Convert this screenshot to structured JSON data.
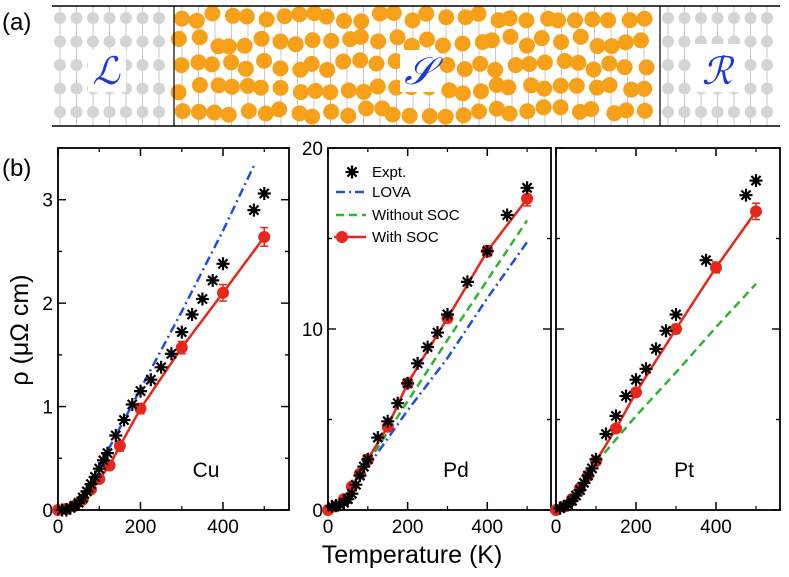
{
  "panel_labels": {
    "a": "(a)",
    "b": "(b)"
  },
  "schematic": {
    "left_label": "ℒ",
    "center_label": "𝒮",
    "right_label": "ℛ",
    "lead_dot_color": "#d4d4d4",
    "scatter_dot_color": "#f7a11a",
    "letter_color": "#1a35e6"
  },
  "axes": {
    "ylabel": "ρ (μΩ cm)",
    "xlabel": "Temperature (K)"
  },
  "colors": {
    "expt": "#000000",
    "lova": "#1f4fe0",
    "without_soc": "#2db52d",
    "with_soc": "#e8261c"
  },
  "legend": {
    "expt": "Expt.",
    "lova": "LOVA",
    "without_soc": "Without SOC",
    "with_soc": "With SOC"
  },
  "chart_data": [
    {
      "type": "line",
      "panel": "Cu",
      "metal_label": "Cu",
      "xlabel": "Temperature (K)",
      "ylabel": "ρ (μΩ cm)",
      "xlim": [
        0,
        560
      ],
      "ylim": [
        0,
        3.5
      ],
      "xticks": [
        0,
        200,
        400
      ],
      "xtick_labels": [
        "0",
        "200",
        "400"
      ],
      "yticks": [
        0,
        1,
        2,
        3
      ],
      "ytick_labels": [
        "0",
        "1",
        "2",
        "3"
      ],
      "series": [
        {
          "name": "Expt.",
          "style": "star",
          "x": [
            10,
            20,
            30,
            40,
            50,
            60,
            70,
            80,
            90,
            100,
            110,
            120,
            140,
            160,
            180,
            200,
            225,
            250,
            275,
            300,
            325,
            350,
            375,
            400,
            475,
            500
          ],
          "y": [
            0,
            0,
            0.02,
            0.04,
            0.07,
            0.12,
            0.18,
            0.25,
            0.32,
            0.4,
            0.48,
            0.55,
            0.72,
            0.87,
            1.02,
            1.15,
            1.26,
            1.38,
            1.51,
            1.72,
            1.89,
            2.04,
            2.22,
            2.38,
            2.9,
            3.06
          ]
        },
        {
          "name": "LOVA",
          "style": "dashdot",
          "x": [
            100,
            200,
            300,
            400,
            475
          ],
          "y": [
            0.42,
            1.17,
            1.92,
            2.7,
            3.33
          ]
        },
        {
          "name": "With SOC",
          "style": "line-circle",
          "x": [
            0,
            20,
            40,
            60,
            80,
            100,
            125,
            150,
            200,
            300,
            400,
            500
          ],
          "y": [
            0,
            0.01,
            0.04,
            0.1,
            0.2,
            0.3,
            0.43,
            0.62,
            0.98,
            1.57,
            2.1,
            2.64
          ],
          "err": [
            0,
            0,
            0,
            0.01,
            0.02,
            0.03,
            0.04,
            0.05,
            0.05,
            0.06,
            0.08,
            0.09
          ]
        }
      ]
    },
    {
      "type": "line",
      "panel": "Pd",
      "metal_label": "Pd",
      "xlabel": "Temperature (K)",
      "xlim": [
        0,
        560
      ],
      "ylim": [
        0,
        20
      ],
      "xticks": [
        0,
        200,
        400
      ],
      "xtick_labels": [
        "0",
        "200",
        "400"
      ],
      "yticks": [
        0,
        10,
        20
      ],
      "ytick_labels": [
        "0",
        "10",
        "20"
      ],
      "series": [
        {
          "name": "Expt.",
          "style": "star",
          "x": [
            10,
            20,
            30,
            40,
            50,
            60,
            70,
            80,
            90,
            100,
            125,
            150,
            175,
            200,
            225,
            250,
            275,
            300,
            350,
            400,
            450,
            500
          ],
          "y": [
            0.2,
            0.25,
            0.3,
            0.4,
            0.6,
            0.9,
            1.4,
            1.9,
            2.4,
            2.8,
            4.0,
            4.9,
            5.9,
            7.0,
            8.1,
            9.0,
            9.8,
            10.8,
            12.6,
            14.3,
            16.3,
            17.8
          ]
        },
        {
          "name": "LOVA",
          "style": "dashdot",
          "x": [
            100,
            200,
            300,
            400,
            500
          ],
          "y": [
            2.4,
            5.5,
            8.4,
            11.7,
            14.8
          ]
        },
        {
          "name": "Without SOC",
          "style": "dashed",
          "x": [
            100,
            200,
            300,
            400,
            500
          ],
          "y": [
            2.6,
            6.0,
            9.4,
            12.7,
            16.0
          ]
        },
        {
          "name": "With SOC",
          "style": "line-circle",
          "x": [
            0,
            20,
            40,
            60,
            80,
            100,
            150,
            200,
            300,
            400,
            500
          ],
          "y": [
            0,
            0.2,
            0.6,
            1.3,
            2.0,
            2.8,
            4.6,
            7.0,
            10.6,
            14.3,
            17.2
          ],
          "err": [
            0,
            0,
            0,
            0.05,
            0.1,
            0.1,
            0.15,
            0.2,
            0.25,
            0.3,
            0.4
          ]
        }
      ]
    },
    {
      "type": "line",
      "panel": "Pt",
      "metal_label": "Pt",
      "xlabel": "Temperature (K)",
      "xlim": [
        0,
        560
      ],
      "ylim": [
        0,
        20
      ],
      "xticks": [
        0,
        200,
        400
      ],
      "xtick_labels": [
        "0",
        "200",
        "400"
      ],
      "yticks": [
        0,
        10,
        20
      ],
      "ytick_labels": [],
      "series": [
        {
          "name": "Expt.",
          "style": "star",
          "x": [
            10,
            20,
            30,
            40,
            50,
            60,
            70,
            80,
            90,
            100,
            125,
            150,
            175,
            200,
            225,
            250,
            275,
            300,
            375,
            475,
            500
          ],
          "y": [
            0.1,
            0.2,
            0.3,
            0.5,
            0.8,
            1.1,
            1.5,
            1.9,
            2.3,
            2.8,
            4.2,
            5.2,
            6.3,
            7.2,
            7.8,
            8.9,
            9.9,
            10.8,
            13.8,
            17.4,
            18.2
          ]
        },
        {
          "name": "Without SOC",
          "style": "dashed",
          "x": [
            100,
            200,
            300,
            400,
            500
          ],
          "y": [
            2.6,
            5.2,
            7.6,
            10.1,
            12.5
          ]
        },
        {
          "name": "With SOC",
          "style": "line-circle",
          "x": [
            0,
            20,
            40,
            60,
            80,
            100,
            150,
            200,
            300,
            400,
            500
          ],
          "y": [
            0,
            0.2,
            0.6,
            1.2,
            1.9,
            2.7,
            4.5,
            6.5,
            10.0,
            13.4,
            16.5
          ],
          "err": [
            0,
            0,
            0,
            0.05,
            0.1,
            0.1,
            0.15,
            0.2,
            0.25,
            0.3,
            0.45
          ]
        }
      ]
    }
  ]
}
